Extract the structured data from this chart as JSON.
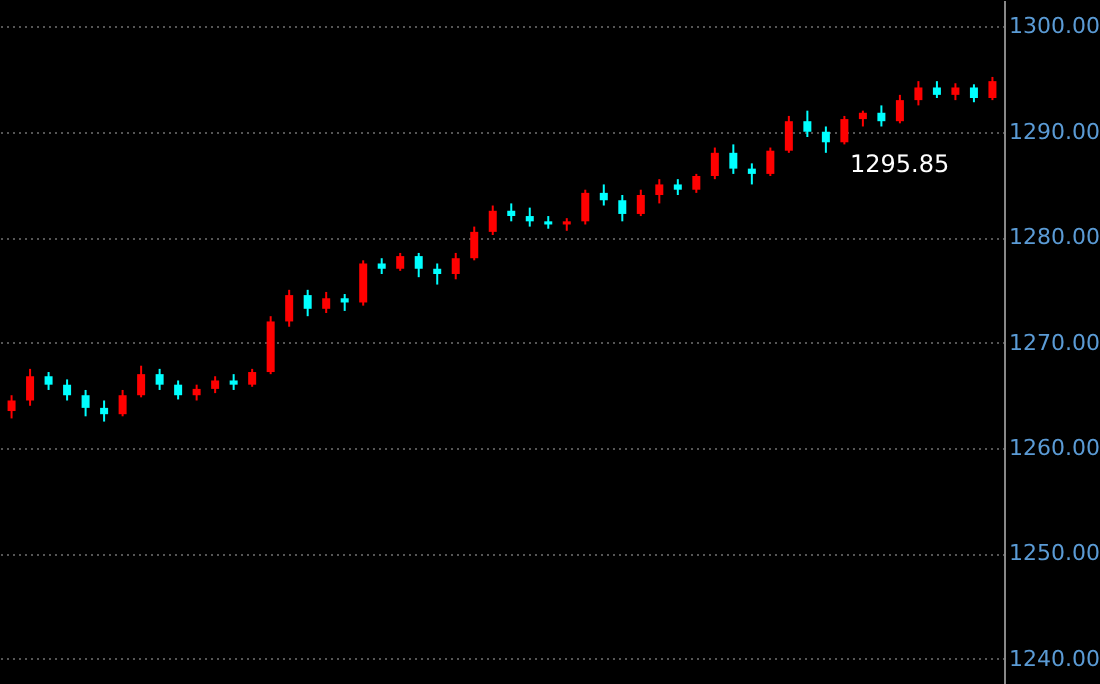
{
  "chart_data": {
    "type": "candlestick",
    "categories": [
      null,
      null,
      null,
      null,
      null,
      null,
      null,
      null,
      null,
      null,
      null,
      null,
      null,
      null,
      null,
      null,
      null,
      null,
      null,
      null,
      null,
      null,
      null,
      null,
      null,
      null,
      null,
      null,
      null,
      null,
      null,
      null,
      null,
      null,
      null,
      null,
      null,
      null,
      null,
      null,
      null,
      null,
      null,
      null,
      null,
      null,
      null,
      null,
      null,
      null,
      null,
      null,
      null,
      null
    ],
    "ohlc": [
      [
        1263.5,
        1265,
        1262.8,
        1264.5
      ],
      [
        1264.5,
        1267.5,
        1264,
        1266.8
      ],
      [
        1266.8,
        1267.2,
        1265.5,
        1266
      ],
      [
        1266,
        1266.5,
        1264.5,
        1265
      ],
      [
        1265,
        1265.5,
        1263,
        1263.8
      ],
      [
        1263.8,
        1264.5,
        1262.5,
        1263.2
      ],
      [
        1263.2,
        1265.5,
        1263,
        1265
      ],
      [
        1265,
        1267.8,
        1264.8,
        1267
      ],
      [
        1267,
        1267.5,
        1265.5,
        1266
      ],
      [
        1266,
        1266.4,
        1264.6,
        1265
      ],
      [
        1265,
        1266,
        1264.5,
        1265.6
      ],
      [
        1265.6,
        1266.8,
        1265.2,
        1266.4
      ],
      [
        1266.4,
        1267,
        1265.5,
        1266
      ],
      [
        1266,
        1267.5,
        1265.8,
        1267.2
      ],
      [
        1267.2,
        1272.5,
        1267,
        1272
      ],
      [
        1272,
        1275,
        1271.5,
        1274.5
      ],
      [
        1274.5,
        1275,
        1272.5,
        1273.2
      ],
      [
        1273.2,
        1274.8,
        1272.8,
        1274.2
      ],
      [
        1274.2,
        1274.6,
        1273,
        1273.8
      ],
      [
        1273.8,
        1277.8,
        1273.5,
        1277.5
      ],
      [
        1277.5,
        1278,
        1276.5,
        1277
      ],
      [
        1277,
        1278.5,
        1276.8,
        1278.2
      ],
      [
        1278.2,
        1278.5,
        1276.2,
        1277
      ],
      [
        1277,
        1277.5,
        1275.5,
        1276.5
      ],
      [
        1276.5,
        1278.5,
        1276,
        1278
      ],
      [
        1278,
        1281,
        1277.8,
        1280.5
      ],
      [
        1280.5,
        1283,
        1280.2,
        1282.5
      ],
      [
        1282.5,
        1283.2,
        1281.5,
        1282
      ],
      [
        1282,
        1282.8,
        1281,
        1281.5
      ],
      [
        1281.5,
        1282,
        1280.8,
        1281.2
      ],
      [
        1281.2,
        1281.8,
        1280.6,
        1281.5
      ],
      [
        1281.5,
        1284.5,
        1281.2,
        1284.2
      ],
      [
        1284.2,
        1285,
        1283,
        1283.5
      ],
      [
        1283.5,
        1284,
        1281.5,
        1282.2
      ],
      [
        1282.2,
        1284.5,
        1282,
        1284
      ],
      [
        1284,
        1285.5,
        1283.2,
        1285
      ],
      [
        1285,
        1285.5,
        1284,
        1284.5
      ],
      [
        1284.5,
        1286,
        1284.2,
        1285.8
      ],
      [
        1285.8,
        1288.5,
        1285.5,
        1288
      ],
      [
        1288,
        1288.8,
        1286,
        1286.5
      ],
      [
        1286.5,
        1287,
        1285,
        1286
      ],
      [
        1286,
        1288.5,
        1285.8,
        1288.2
      ],
      [
        1288.2,
        1291.5,
        1288,
        1291
      ],
      [
        1291,
        1292,
        1289.5,
        1290
      ],
      [
        1290,
        1290.5,
        1288,
        1289
      ],
      [
        1289,
        1291.5,
        1288.8,
        1291.2
      ],
      [
        1291.2,
        1292,
        1290.5,
        1291.8
      ],
      [
        1291.8,
        1292.5,
        1290.5,
        1291
      ],
      [
        1291,
        1293.5,
        1290.8,
        1293
      ],
      [
        1293,
        1294.8,
        1292.5,
        1294.2
      ],
      [
        1294.2,
        1294.8,
        1293.2,
        1293.5
      ],
      [
        1293.5,
        1294.6,
        1293,
        1294.2
      ],
      [
        1294.2,
        1294.5,
        1292.8,
        1293.2
      ],
      [
        1293.2,
        1295.2,
        1293,
        1294.8
      ]
    ],
    "colors": [
      "#ff0000",
      "#ff0000",
      "#00ffff",
      "#00ffff",
      "#00ffff",
      "#00ffff",
      "#ff0000",
      "#ff0000",
      "#00ffff",
      "#00ffff",
      "#ff0000",
      "#ff0000",
      "#00ffff",
      "#ff0000",
      "#ff0000",
      "#ff0000",
      "#00ffff",
      "#ff0000",
      "#00ffff",
      "#ff0000",
      "#00ffff",
      "#ff0000",
      "#00ffff",
      "#00ffff",
      "#ff0000",
      "#ff0000",
      "#ff0000",
      "#00ffff",
      "#00ffff",
      "#00ffff",
      "#ff0000",
      "#ff0000",
      "#00ffff",
      "#00ffff",
      "#ff0000",
      "#ff0000",
      "#00ffff",
      "#ff0000",
      "#ff0000",
      "#00ffff",
      "#00ffff",
      "#ff0000",
      "#ff0000",
      "#00ffff",
      "#00ffff",
      "#ff0000",
      "#ff0000",
      "#00ffff",
      "#ff0000",
      "#ff0000",
      "#00ffff",
      "#ff0000",
      "#00ffff",
      "#ff0000"
    ],
    "ylim": [
      1237.6,
      1302.5
    ],
    "yticks": [
      {
        "value": 1240,
        "label": "1240.00"
      },
      {
        "value": 1250,
        "label": "1250.00"
      },
      {
        "value": 1260,
        "label": "1260.00"
      },
      {
        "value": 1270,
        "label": "1270.00"
      },
      {
        "value": 1280,
        "label": "1280.00"
      },
      {
        "value": 1290,
        "label": "1290.00"
      },
      {
        "value": 1300,
        "label": "1300.00"
      }
    ],
    "grid": "y",
    "annotations": [
      "1295.85"
    ]
  }
}
